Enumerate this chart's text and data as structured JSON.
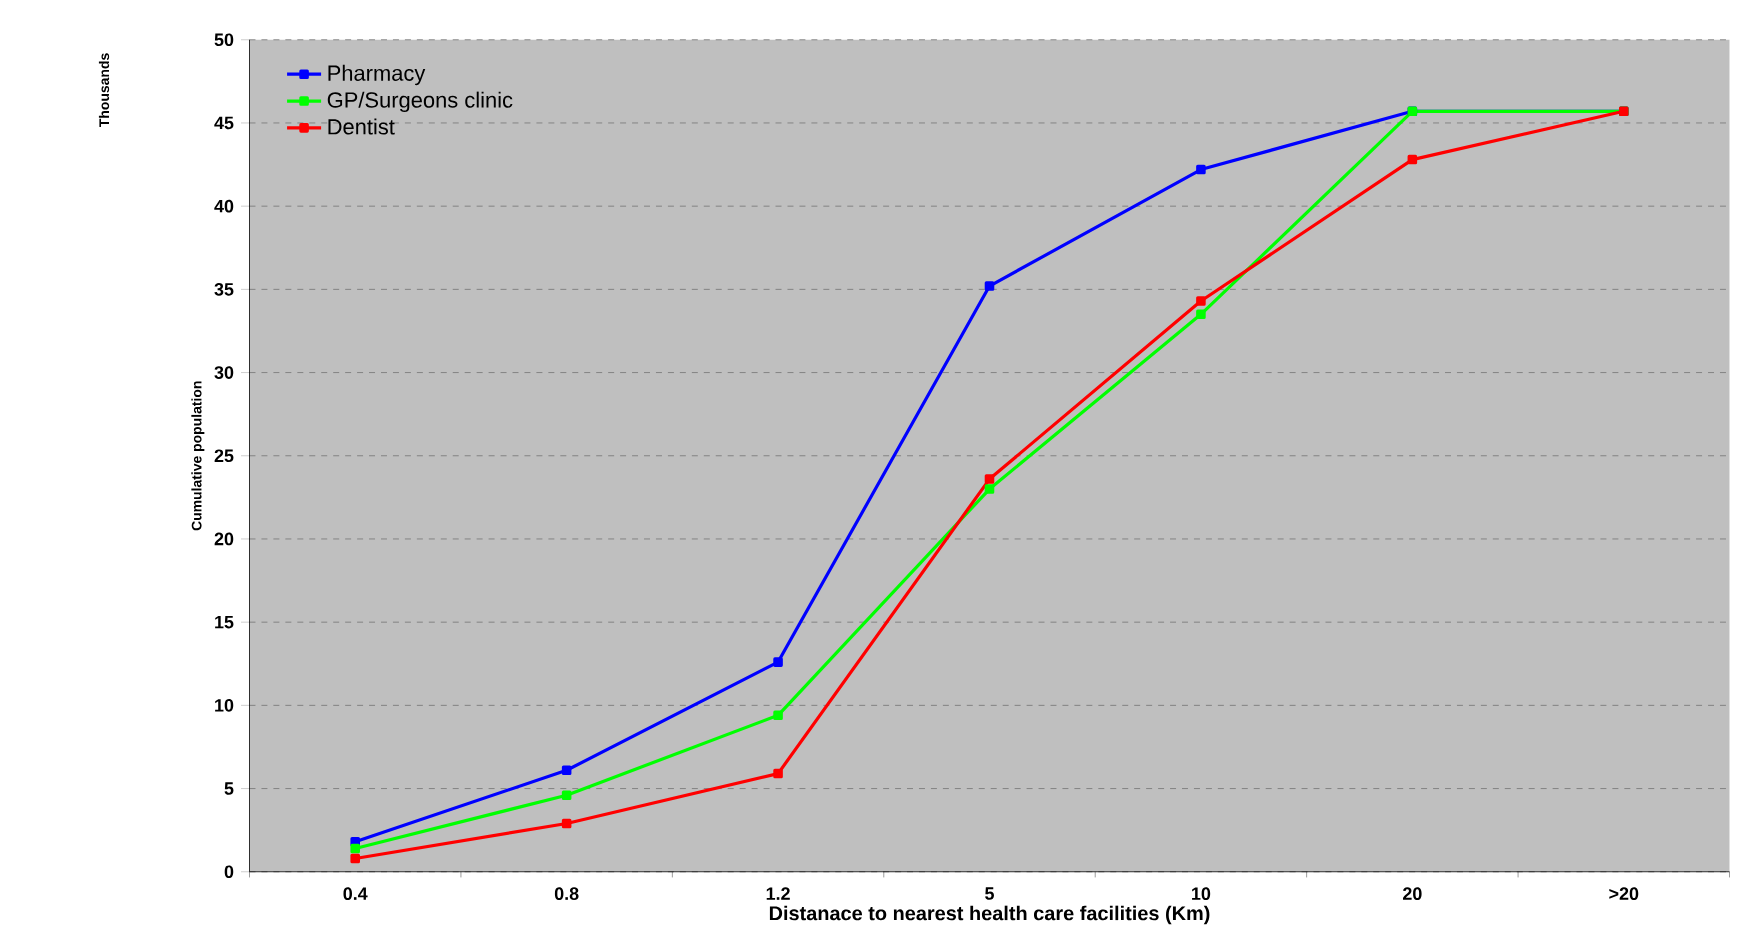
{
  "chart_data": {
    "type": "line",
    "xlabel": "Distanace to nearest health care facilities (Km)",
    "ylabel": "Cumulative population",
    "annotations": [
      "Thousands"
    ],
    "categories": [
      "0.4",
      "0.8",
      "1.2",
      "5",
      "10",
      "20",
      ">20"
    ],
    "series": [
      {
        "name": "Pharmacy",
        "color": "#0000ff",
        "values": [
          1.8,
          6.1,
          12.6,
          35.2,
          42.2,
          45.7,
          45.7
        ]
      },
      {
        "name": "GP/Surgeons clinic",
        "color": "#00ff00",
        "values": [
          1.4,
          4.6,
          9.4,
          23.0,
          33.5,
          45.7,
          45.7
        ]
      },
      {
        "name": "Dentist",
        "color": "#ff0000",
        "values": [
          0.8,
          2.9,
          5.9,
          23.6,
          34.3,
          42.8,
          45.7
        ]
      }
    ],
    "ylim": [
      0,
      50
    ],
    "yticks": [
      0,
      5,
      10,
      15,
      20,
      25,
      30,
      35,
      40,
      45,
      50
    ],
    "grid": "y",
    "legend": "top left",
    "marker": "square",
    "line_style": "solid"
  }
}
